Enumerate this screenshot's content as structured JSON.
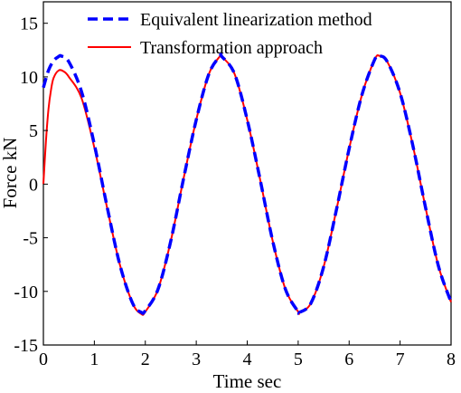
{
  "chart_data": {
    "type": "line",
    "title": "",
    "xlabel": "Time sec",
    "ylabel": "Force  kN",
    "xlim": [
      0,
      8
    ],
    "ylim": [
      -15,
      17
    ],
    "xticks": [
      0,
      1,
      2,
      3,
      4,
      5,
      6,
      7,
      8
    ],
    "yticks": [
      -15,
      -10,
      -5,
      0,
      5,
      10,
      15
    ],
    "grid": false,
    "legend_position": "top-center",
    "series": [
      {
        "name": "Equivalent linearization method",
        "color": "#0000ff",
        "style": "dashed",
        "x": [
          0,
          0.1,
          0.2,
          0.3,
          0.35,
          0.5,
          0.75,
          1.0,
          1.25,
          1.5,
          1.75,
          1.92,
          2.0,
          2.25,
          2.5,
          2.75,
          3.0,
          3.25,
          3.47,
          3.5,
          3.75,
          4.0,
          4.25,
          4.5,
          4.75,
          5.0,
          5.03,
          5.25,
          5.5,
          5.75,
          6.0,
          6.25,
          6.5,
          6.6,
          6.75,
          7.0,
          7.25,
          7.5,
          7.75,
          8.0
        ],
        "y": [
          9.0,
          10.6,
          11.5,
          11.9,
          11.95,
          11.4,
          8.6,
          3.7,
          -2.1,
          -7.5,
          -11.1,
          -11.95,
          -11.8,
          -9.8,
          -5.3,
          0.5,
          6.0,
          10.3,
          11.95,
          11.9,
          10.3,
          6.0,
          0.5,
          -5.3,
          -9.8,
          -11.9,
          -11.95,
          -11.1,
          -7.7,
          -2.4,
          3.3,
          8.3,
          11.6,
          11.95,
          11.4,
          8.5,
          3.6,
          -2.2,
          -7.6,
          -11.0
        ]
      },
      {
        "name": "Transformation approach",
        "color": "#ff0000",
        "style": "solid",
        "x": [
          0,
          0.05,
          0.1,
          0.15,
          0.2,
          0.3,
          0.4,
          0.5,
          0.75,
          1.0,
          1.25,
          1.5,
          1.75,
          1.92,
          2.0,
          2.25,
          2.5,
          2.75,
          3.0,
          3.25,
          3.47,
          3.5,
          3.75,
          4.0,
          4.25,
          4.5,
          4.75,
          5.0,
          5.03,
          5.25,
          5.5,
          5.75,
          6.0,
          6.25,
          6.5,
          6.6,
          6.75,
          7.0,
          7.25,
          7.5,
          7.75,
          8.0
        ],
        "y": [
          0,
          4.0,
          7.0,
          8.8,
          9.9,
          10.6,
          10.5,
          10.0,
          8.0,
          3.4,
          -2.2,
          -7.5,
          -11.1,
          -12.1,
          -11.9,
          -9.8,
          -5.3,
          0.5,
          6.0,
          10.3,
          11.95,
          11.9,
          10.3,
          6.0,
          0.5,
          -5.3,
          -9.8,
          -11.9,
          -11.95,
          -11.1,
          -7.7,
          -2.4,
          3.3,
          8.3,
          11.6,
          11.95,
          11.4,
          8.5,
          3.6,
          -2.2,
          -7.6,
          -11.0
        ]
      }
    ]
  }
}
